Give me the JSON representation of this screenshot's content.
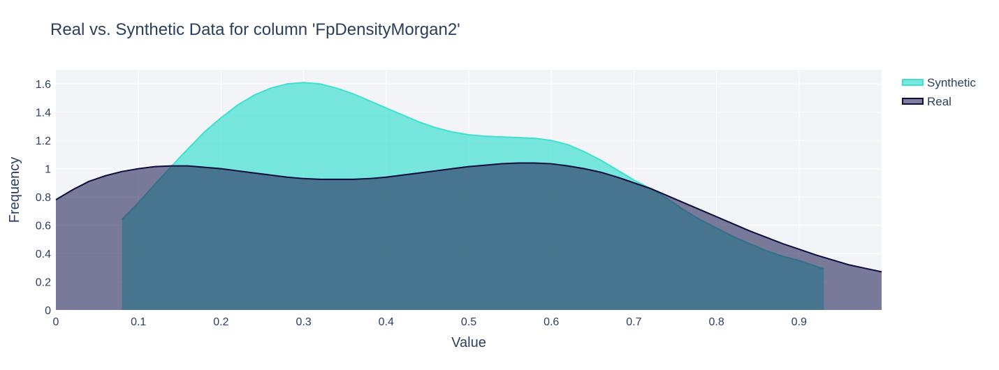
{
  "chart_data": {
    "type": "area",
    "title": "Real vs. Synthetic Data for column 'FpDensityMorgan2'",
    "xlabel": "Value",
    "ylabel": "Frequency",
    "xlim": [
      0,
      1.0
    ],
    "ylim": [
      0,
      1.7
    ],
    "xticks": [
      0,
      0.1,
      0.2,
      0.3,
      0.4,
      0.5,
      0.6,
      0.7,
      0.8,
      0.9
    ],
    "yticks": [
      0,
      0.2,
      0.4,
      0.6,
      0.8,
      1,
      1.2,
      1.4,
      1.6
    ],
    "xtick_labels": [
      "0",
      "0.1",
      "0.2",
      "0.3",
      "0.4",
      "0.5",
      "0.6",
      "0.7",
      "0.8",
      "0.9"
    ],
    "ytick_labels": [
      "0",
      "0.2",
      "0.4",
      "0.6",
      "0.8",
      "1",
      "1.2",
      "1.4",
      "1.6"
    ],
    "grid": true,
    "legend_position": "top-right",
    "series": [
      {
        "name": "Synthetic",
        "color": "#40e0d0",
        "fill": "rgba(64,224,208,0.7)",
        "x": [
          0.08,
          0.1,
          0.12,
          0.15,
          0.18,
          0.2,
          0.22,
          0.24,
          0.26,
          0.28,
          0.3,
          0.32,
          0.34,
          0.36,
          0.38,
          0.4,
          0.42,
          0.44,
          0.46,
          0.48,
          0.5,
          0.52,
          0.54,
          0.56,
          0.58,
          0.6,
          0.62,
          0.64,
          0.66,
          0.68,
          0.7,
          0.72,
          0.74,
          0.76,
          0.78,
          0.8,
          0.82,
          0.84,
          0.86,
          0.88,
          0.9,
          0.93
        ],
        "y": [
          0.64,
          0.76,
          0.89,
          1.08,
          1.26,
          1.36,
          1.45,
          1.52,
          1.57,
          1.6,
          1.61,
          1.6,
          1.57,
          1.53,
          1.48,
          1.43,
          1.38,
          1.33,
          1.29,
          1.26,
          1.24,
          1.23,
          1.225,
          1.22,
          1.215,
          1.2,
          1.17,
          1.12,
          1.06,
          0.99,
          0.92,
          0.86,
          0.79,
          0.71,
          0.64,
          0.58,
          0.52,
          0.47,
          0.42,
          0.38,
          0.35,
          0.29
        ]
      },
      {
        "name": "Real",
        "color": "#0d0d3f",
        "fill": "rgba(40,40,90,0.6)",
        "x": [
          0.0,
          0.02,
          0.04,
          0.06,
          0.08,
          0.1,
          0.12,
          0.14,
          0.16,
          0.18,
          0.2,
          0.22,
          0.24,
          0.26,
          0.28,
          0.3,
          0.32,
          0.34,
          0.36,
          0.38,
          0.4,
          0.42,
          0.44,
          0.46,
          0.48,
          0.5,
          0.52,
          0.54,
          0.56,
          0.58,
          0.6,
          0.62,
          0.64,
          0.66,
          0.68,
          0.7,
          0.72,
          0.74,
          0.76,
          0.78,
          0.8,
          0.82,
          0.84,
          0.86,
          0.88,
          0.9,
          0.92,
          0.94,
          0.96,
          0.98,
          1.0
        ],
        "y": [
          0.78,
          0.85,
          0.91,
          0.95,
          0.98,
          1.0,
          1.015,
          1.02,
          1.02,
          1.01,
          1.0,
          0.985,
          0.97,
          0.955,
          0.94,
          0.93,
          0.925,
          0.925,
          0.925,
          0.93,
          0.94,
          0.955,
          0.97,
          0.985,
          1.0,
          1.015,
          1.025,
          1.035,
          1.04,
          1.04,
          1.035,
          1.02,
          1.0,
          0.975,
          0.94,
          0.9,
          0.86,
          0.81,
          0.76,
          0.71,
          0.66,
          0.61,
          0.56,
          0.515,
          0.47,
          0.43,
          0.39,
          0.355,
          0.32,
          0.295,
          0.27
        ]
      }
    ]
  }
}
